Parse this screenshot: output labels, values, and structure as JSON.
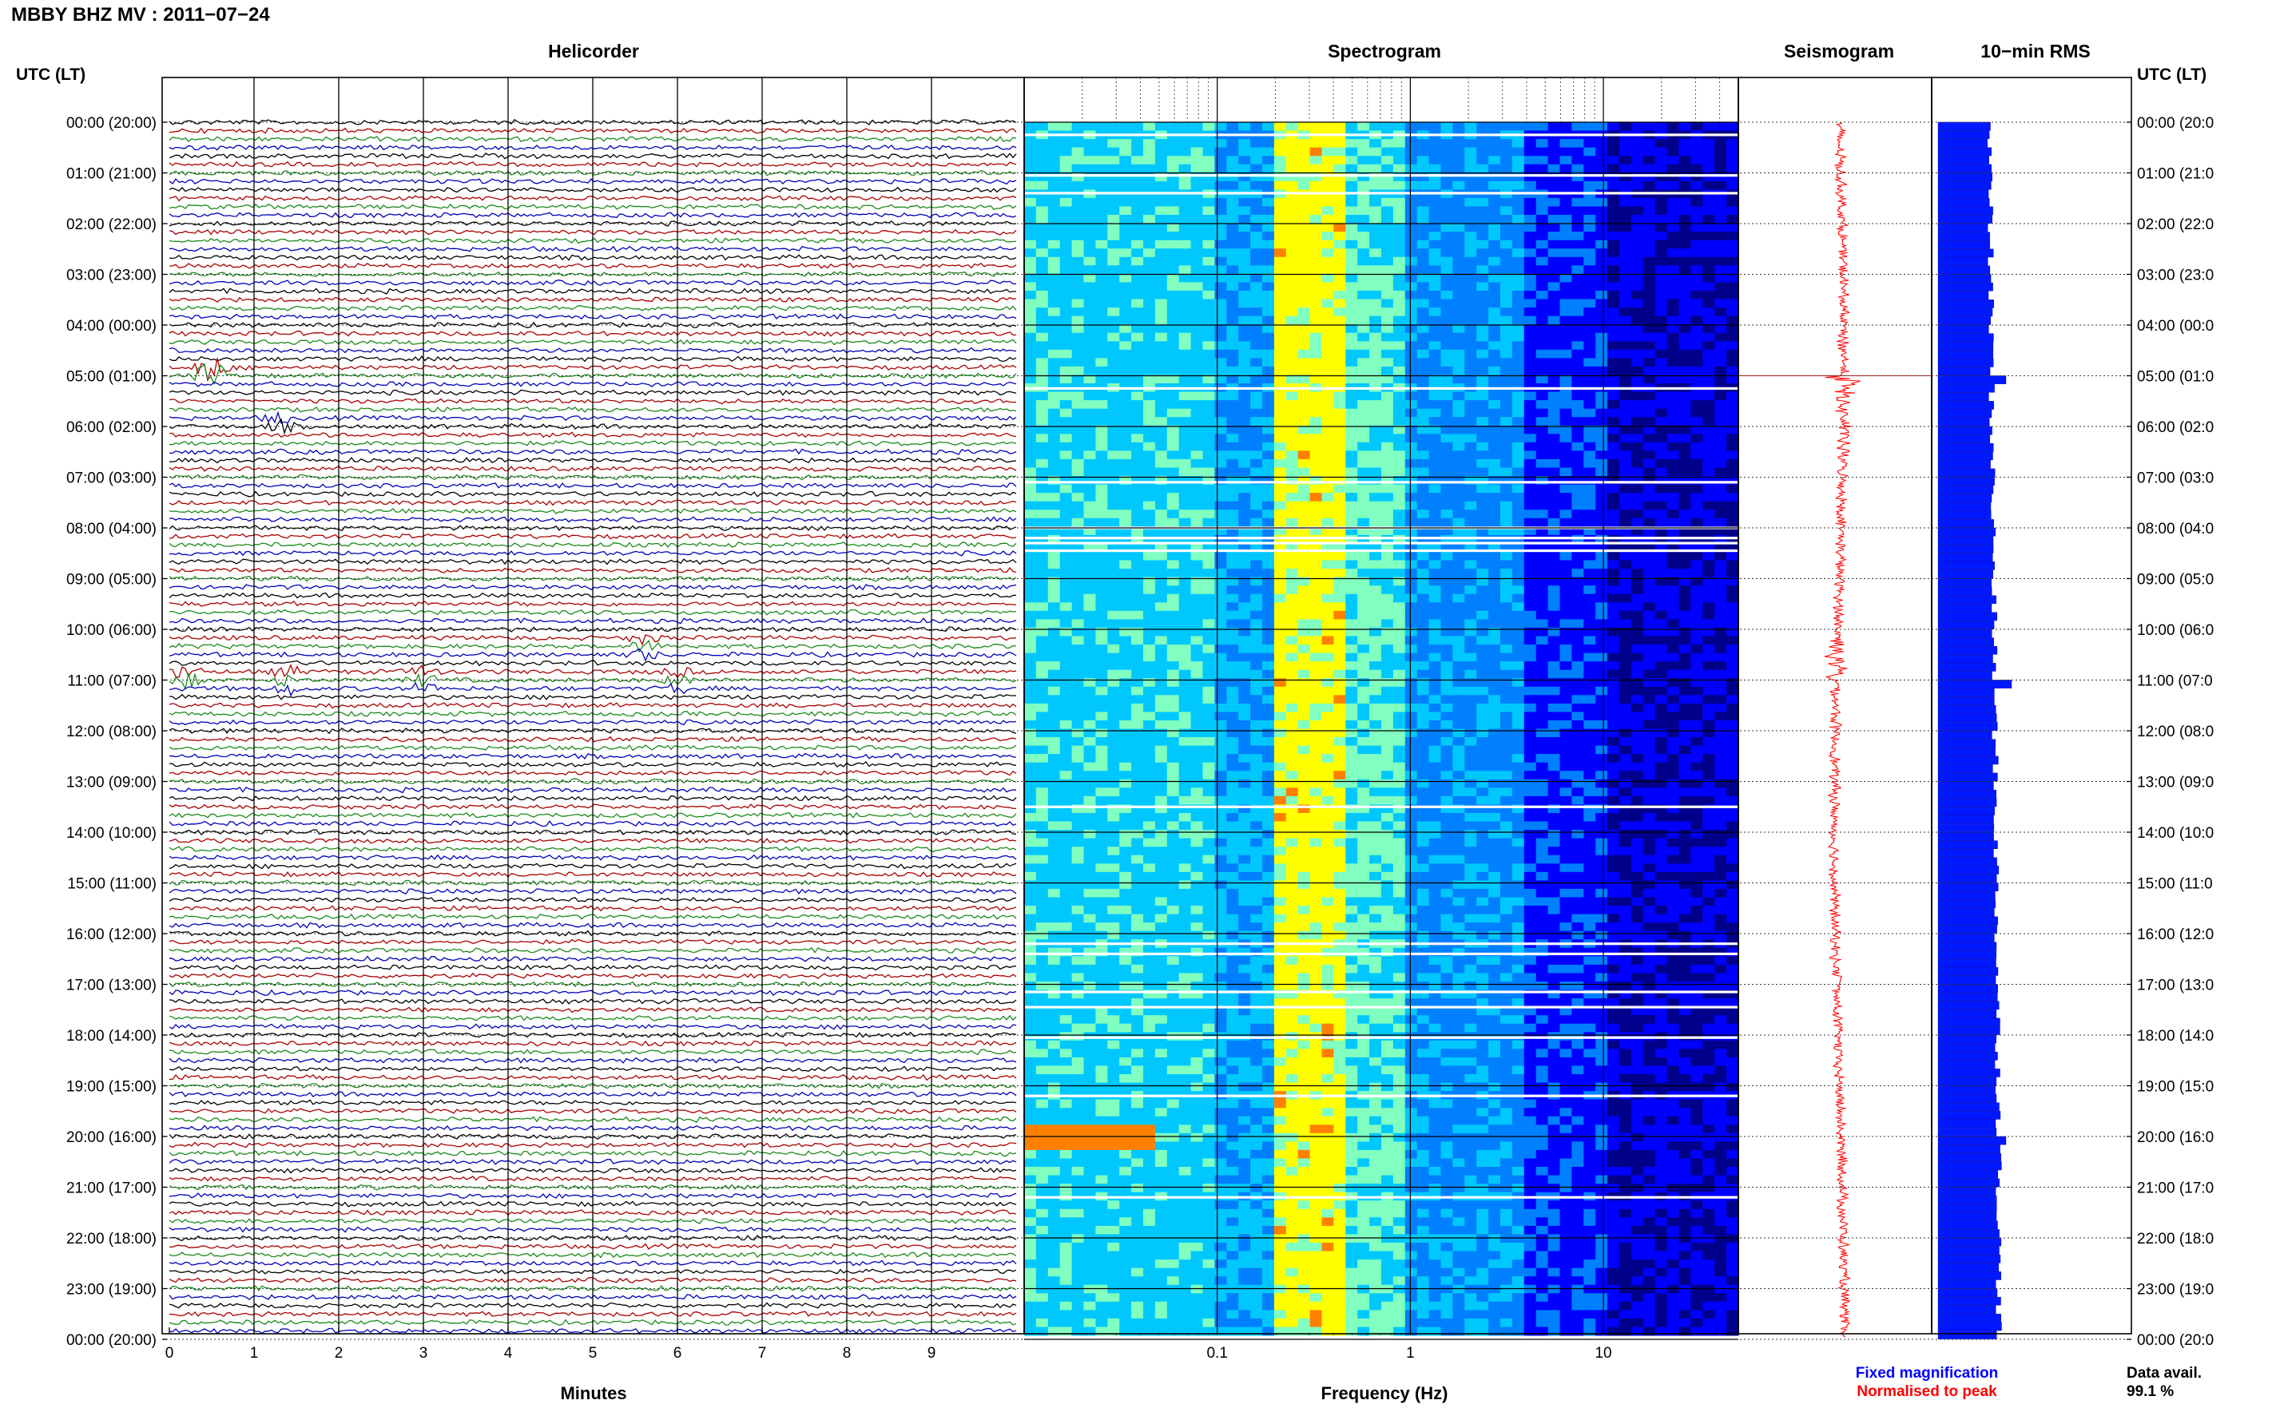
{
  "header": {
    "station_title": "MBBY BHZ MV : 2011−07−24",
    "utc_label_left": "UTC (LT)",
    "utc_label_right": "UTC (LT)"
  },
  "panels": {
    "helicorder_title": "Helicorder",
    "spectrogram_title": "Spectrogram",
    "seismogram_title": "Seismogram",
    "rms_title": "10−min RMS"
  },
  "footer": {
    "minutes_label": "Minutes",
    "frequency_label": "Frequency (Hz)",
    "legend_fixed": "Fixed magnification",
    "legend_normalised": "Normalised to peak",
    "data_avail_label": "Data avail.",
    "data_avail_value": "99.1 %"
  },
  "colors": {
    "helicorder_traces": [
      "#000000",
      "#aa0000",
      "#1a8a1a",
      "#0000bb"
    ],
    "seismogram": "#ff0000",
    "rms": "#0018ff",
    "legend_fixed": "#0000ff",
    "legend_normalised": "#ff0000"
  },
  "chart_data": [
    {
      "type": "line",
      "name": "helicorder",
      "title": "Helicorder",
      "xlabel": "Minutes",
      "xlim": [
        0,
        10
      ],
      "x_ticks": [
        "0",
        "1",
        "2",
        "3",
        "4",
        "5",
        "6",
        "7",
        "8",
        "9"
      ],
      "rows_per_hour": 6,
      "hours": 24,
      "y_ticks_left": [
        "00:00 (20:00)",
        "01:00 (21:00)",
        "02:00 (22:00)",
        "03:00 (23:00)",
        "04:00 (00:00)",
        "05:00 (01:00)",
        "06:00 (02:00)",
        "07:00 (03:00)",
        "08:00 (04:00)",
        "09:00 (05:00)",
        "10:00 (06:00)",
        "11:00 (07:00)",
        "12:00 (08:00)",
        "13:00 (09:00)",
        "14:00 (10:00)",
        "15:00 (11:00)",
        "16:00 (12:00)",
        "17:00 (13:00)",
        "18:00 (14:00)",
        "19:00 (15:00)",
        "20:00 (16:00)",
        "21:00 (17:00)",
        "22:00 (18:00)",
        "23:00 (19:00)",
        "00:00 (20:00)"
      ],
      "y_ticks_right": [
        "00:00 (20:0",
        "01:00 (21:0",
        "02:00 (22:0",
        "03:00 (23:0",
        "04:00 (00:0",
        "05:00 (01:0",
        "06:00 (02:0",
        "07:00 (03:0",
        "08:00 (04:0",
        "09:00 (05:0",
        "10:00 (06:0",
        "11:00 (07:0",
        "12:00 (08:0",
        "13:00 (09:0",
        "14:00 (10:0",
        "15:00 (11:0",
        "16:00 (12:0",
        "17:00 (13:0",
        "18:00 (14:0",
        "19:00 (15:0",
        "20:00 (16:0",
        "21:00 (17:0",
        "22:00 (18:0",
        "23:00 (19:0",
        "00:00 (20:0"
      ],
      "events": [
        {
          "hour": 4.95,
          "minute": 0.5,
          "amplitude": 3.5
        },
        {
          "hour": 5.9,
          "minute": 1.3,
          "amplitude": 1.2
        },
        {
          "hour": 10.3,
          "minute": 5.6,
          "amplitude": 1.2
        },
        {
          "hour": 10.95,
          "minute": 0.2,
          "amplitude": 1.5
        },
        {
          "hour": 10.97,
          "minute": 1.4,
          "amplitude": 1.2
        },
        {
          "hour": 10.97,
          "minute": 3.0,
          "amplitude": 1.2
        },
        {
          "hour": 10.97,
          "minute": 6.0,
          "amplitude": 1.0
        }
      ]
    },
    {
      "type": "heatmap",
      "name": "spectrogram",
      "title": "Spectrogram",
      "xlabel": "Frequency (Hz)",
      "xscale": "log",
      "xlim": [
        0.01,
        50
      ],
      "x_ticks": [
        "0.1",
        "1",
        "10"
      ],
      "colormap": [
        "#00008b",
        "#0000ff",
        "#0080ff",
        "#00c8ff",
        "#80ffc0",
        "#ffff00",
        "#ff8000"
      ],
      "gaps_hours": [
        0.25,
        1.05,
        1.4,
        5.25,
        7.1,
        8.0,
        8.2,
        8.3,
        8.45,
        13.5,
        16.2,
        16.4,
        17.15,
        17.45,
        18.05,
        19.2,
        21.2
      ],
      "peak_band_hz": [
        0.2,
        0.4
      ],
      "strong_event_hour": 20.0
    },
    {
      "type": "line",
      "name": "seismogram",
      "title": "Seismogram",
      "hours": 24,
      "amplitude_per_half_hour": [
        1,
        1,
        1,
        1,
        1,
        1,
        1,
        1,
        2,
        1,
        6,
        3,
        2,
        1,
        1,
        1,
        1,
        1,
        1,
        1,
        3,
        4,
        1,
        1,
        1,
        1,
        1,
        1,
        1,
        1,
        1,
        1,
        1,
        1,
        1,
        1,
        1,
        1,
        1,
        1,
        1,
        1,
        1,
        1,
        1,
        1,
        1,
        1
      ]
    },
    {
      "type": "bar",
      "name": "rms",
      "title": "10−min RMS",
      "orientation": "horizontal",
      "bins": 144,
      "legend": [
        "Fixed magnification",
        "Normalised to peak"
      ]
    }
  ]
}
